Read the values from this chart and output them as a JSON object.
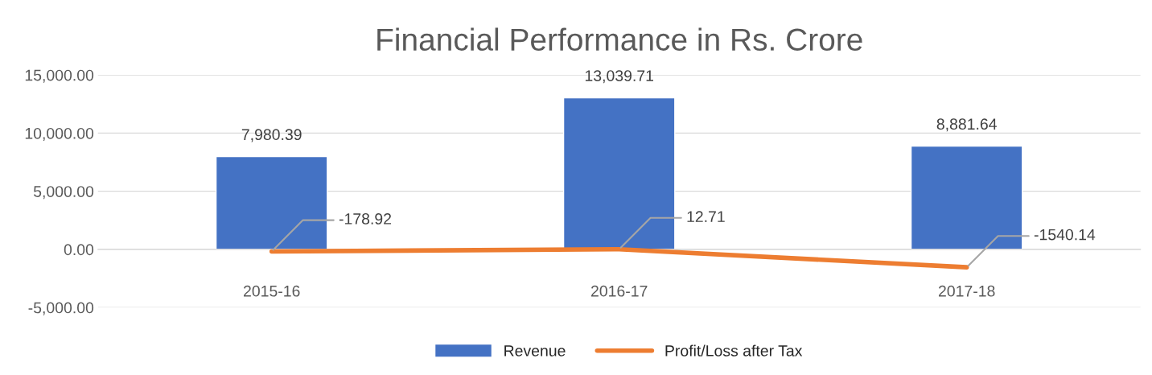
{
  "chart_data": {
    "type": "bar",
    "title": "Financial Performance in Rs. Crore",
    "categories": [
      "2015-16",
      "2016-17",
      "2017-18"
    ],
    "series": [
      {
        "name": "Revenue",
        "color": "#4472c4",
        "values": [
          7980.39,
          13039.71,
          8881.64
        ],
        "value_labels": [
          "7,980.39",
          "13,039.71",
          "8,881.64"
        ]
      },
      {
        "name": "Profit/Loss after Tax",
        "type": "line",
        "color": "#ed7d31",
        "values": [
          -178.92,
          12.71,
          -1540.14
        ],
        "value_labels": [
          "-178.92",
          "12.71",
          "-1540.14"
        ]
      }
    ],
    "ylim": [
      -5000,
      15000
    ],
    "yticks": [
      {
        "value": -5000,
        "label": "-5,000.00"
      },
      {
        "value": 0,
        "label": "0.00"
      },
      {
        "value": 5000,
        "label": "5,000.00"
      },
      {
        "value": 10000,
        "label": "10,000.00"
      },
      {
        "value": 15000,
        "label": "15,000.00"
      }
    ],
    "grid": "y",
    "legend": "bottom",
    "marker": "none",
    "line_style": "solid"
  }
}
